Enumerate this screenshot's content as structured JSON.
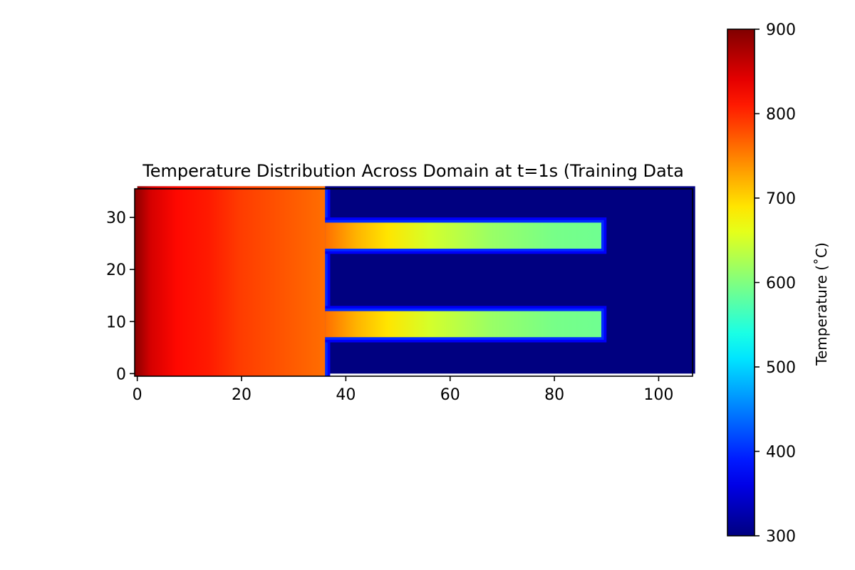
{
  "chart_data": {
    "type": "heatmap",
    "title": "Temperature Distribution Across Domain at t=1s (Training Data",
    "xlabel": "",
    "ylabel": "",
    "xlim": [
      -0.5,
      106.5
    ],
    "ylim": [
      -0.5,
      35.5
    ],
    "xticks": [
      0,
      20,
      40,
      60,
      80,
      100
    ],
    "yticks": [
      0,
      10,
      20,
      30
    ],
    "colormap": "jet",
    "colorbar": {
      "label": "Temperature (˚C)",
      "vmin": 300,
      "vmax": 900,
      "ticks": [
        300,
        400,
        500,
        600,
        700,
        800,
        900
      ]
    },
    "regions": [
      {
        "name": "hot-block",
        "x": [
          0,
          36
        ],
        "y": [
          0,
          36
        ],
        "profile": [
          [
            0,
            895
          ],
          [
            3,
            850
          ],
          [
            8,
            820
          ],
          [
            14,
            810
          ],
          [
            20,
            790
          ],
          [
            28,
            775
          ],
          [
            36,
            760
          ]
        ]
      },
      {
        "name": "upper-fin",
        "x": [
          36,
          89
        ],
        "y": [
          24,
          29
        ],
        "profile": [
          [
            36,
            760
          ],
          [
            42,
            720
          ],
          [
            48,
            690
          ],
          [
            56,
            650
          ],
          [
            68,
            615
          ],
          [
            80,
            595
          ],
          [
            89,
            590
          ]
        ]
      },
      {
        "name": "lower-fin",
        "x": [
          36,
          89
        ],
        "y": [
          7,
          12
        ],
        "profile": [
          [
            36,
            760
          ],
          [
            42,
            720
          ],
          [
            48,
            690
          ],
          [
            56,
            650
          ],
          [
            68,
            615
          ],
          [
            80,
            595
          ],
          [
            89,
            590
          ]
        ]
      },
      {
        "name": "ambient",
        "x": [
          36,
          107
        ],
        "y": [
          0,
          36
        ],
        "value": 300
      }
    ]
  }
}
